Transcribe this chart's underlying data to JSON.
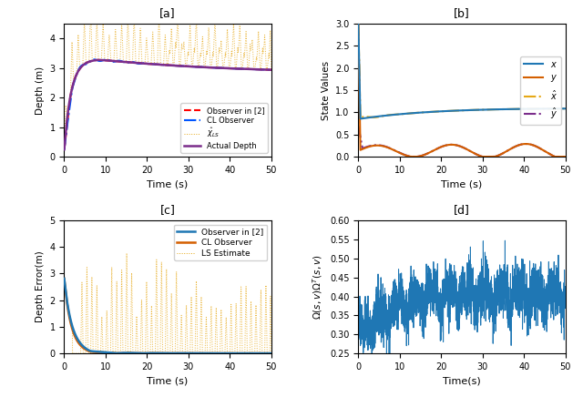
{
  "title_a": "[a]",
  "title_b": "[b]",
  "title_c": "[c]",
  "title_d": "[d]",
  "t_end": 50,
  "dt": 0.02,
  "subplot_a": {
    "ylabel": "Depth (m)",
    "xlabel": "Time (s)",
    "ylim": [
      0,
      4.5
    ],
    "yticks": [
      0,
      1,
      2,
      3,
      4
    ],
    "xticks": [
      0,
      10,
      20,
      30,
      40,
      50
    ],
    "legend": [
      "Observer in [2]",
      "CL Observer",
      "$\\hat{\\chi}_{LS}$",
      "Actual Depth"
    ],
    "colors": [
      "#ff0000",
      "#0055ff",
      "#e6a817",
      "#7b2d8b"
    ],
    "styles": [
      "--",
      "-.",
      ":",
      "-"
    ],
    "linewidths": [
      1.5,
      1.5,
      0.7,
      1.8
    ]
  },
  "subplot_b": {
    "ylabel": "State Values",
    "xlabel": "Time (s)",
    "ylim": [
      0,
      3.0
    ],
    "yticks": [
      0,
      0.5,
      1.0,
      1.5,
      2.0,
      2.5,
      3.0
    ],
    "xticks": [
      0,
      10,
      20,
      30,
      40,
      50
    ],
    "legend": [
      "$x$",
      "$y$",
      "$\\hat{x}$",
      "$\\hat{y}$"
    ],
    "colors": [
      "#1f77b4",
      "#d45f00",
      "#e6a817",
      "#7b2d8b"
    ],
    "styles": [
      "-",
      "-",
      "-.",
      "-."
    ],
    "linewidths": [
      1.5,
      1.5,
      1.5,
      1.5
    ]
  },
  "subplot_c": {
    "ylabel": "Depth Error(m)",
    "xlabel": "Time (s)",
    "ylim": [
      0,
      5
    ],
    "yticks": [
      0,
      1,
      2,
      3,
      4,
      5
    ],
    "xticks": [
      0,
      10,
      20,
      30,
      40,
      50
    ],
    "legend": [
      "Observer in [2]",
      "CL Observer",
      "LS Estimate"
    ],
    "colors": [
      "#1f77b4",
      "#d45f00",
      "#e6a817"
    ],
    "styles": [
      "-",
      "-",
      ":"
    ],
    "linewidths": [
      1.8,
      1.8,
      0.7
    ]
  },
  "subplot_d": {
    "ylabel": "$\\Omega(s,v)\\Omega^T(s,v)$",
    "xlabel": "Time(s)",
    "ylim": [
      0.25,
      0.6
    ],
    "yticks": [
      0.25,
      0.3,
      0.35,
      0.4,
      0.45,
      0.5,
      0.55,
      0.6
    ],
    "xticks": [
      0,
      10,
      20,
      30,
      40,
      50
    ],
    "color": "#1f77b4",
    "linewidth": 0.7
  }
}
